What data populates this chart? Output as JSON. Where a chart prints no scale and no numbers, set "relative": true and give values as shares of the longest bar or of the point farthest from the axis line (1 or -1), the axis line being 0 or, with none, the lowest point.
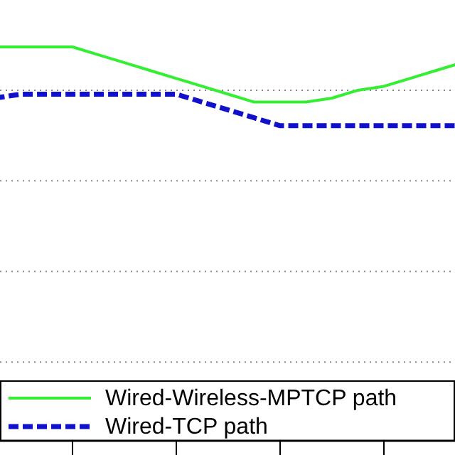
{
  "chart_data": {
    "type": "line",
    "relative": true,
    "grid": "y",
    "legend": "bottom",
    "categories": [
      null,
      null,
      null,
      null,
      null,
      null,
      null,
      null,
      null,
      null,
      null,
      null,
      null,
      null,
      null,
      null,
      null,
      null,
      null
    ],
    "series": [
      {
        "name": "Wired-Wireless-MPTCP path",
        "color": "#33ee33",
        "line_style": "solid",
        "values": [
          1,
          1,
          1,
          1,
          0.98,
          0.96,
          0.94,
          0.92,
          0.9,
          0.88,
          0.86,
          0.86,
          0.86,
          0.87,
          0.89,
          0.9,
          0.92,
          0.94,
          0.96
        ]
      },
      {
        "name": "Wired-TCP path",
        "color": "#1111cc",
        "line_style": "dashed",
        "values": [
          0.87,
          0.88,
          0.88,
          0.88,
          0.88,
          0.88,
          0.88,
          0.88,
          0.86,
          0.84,
          0.82,
          0.8,
          0.8,
          0.8,
          0.8,
          0.8,
          0.8,
          0.8,
          0.8
        ]
      }
    ]
  }
}
